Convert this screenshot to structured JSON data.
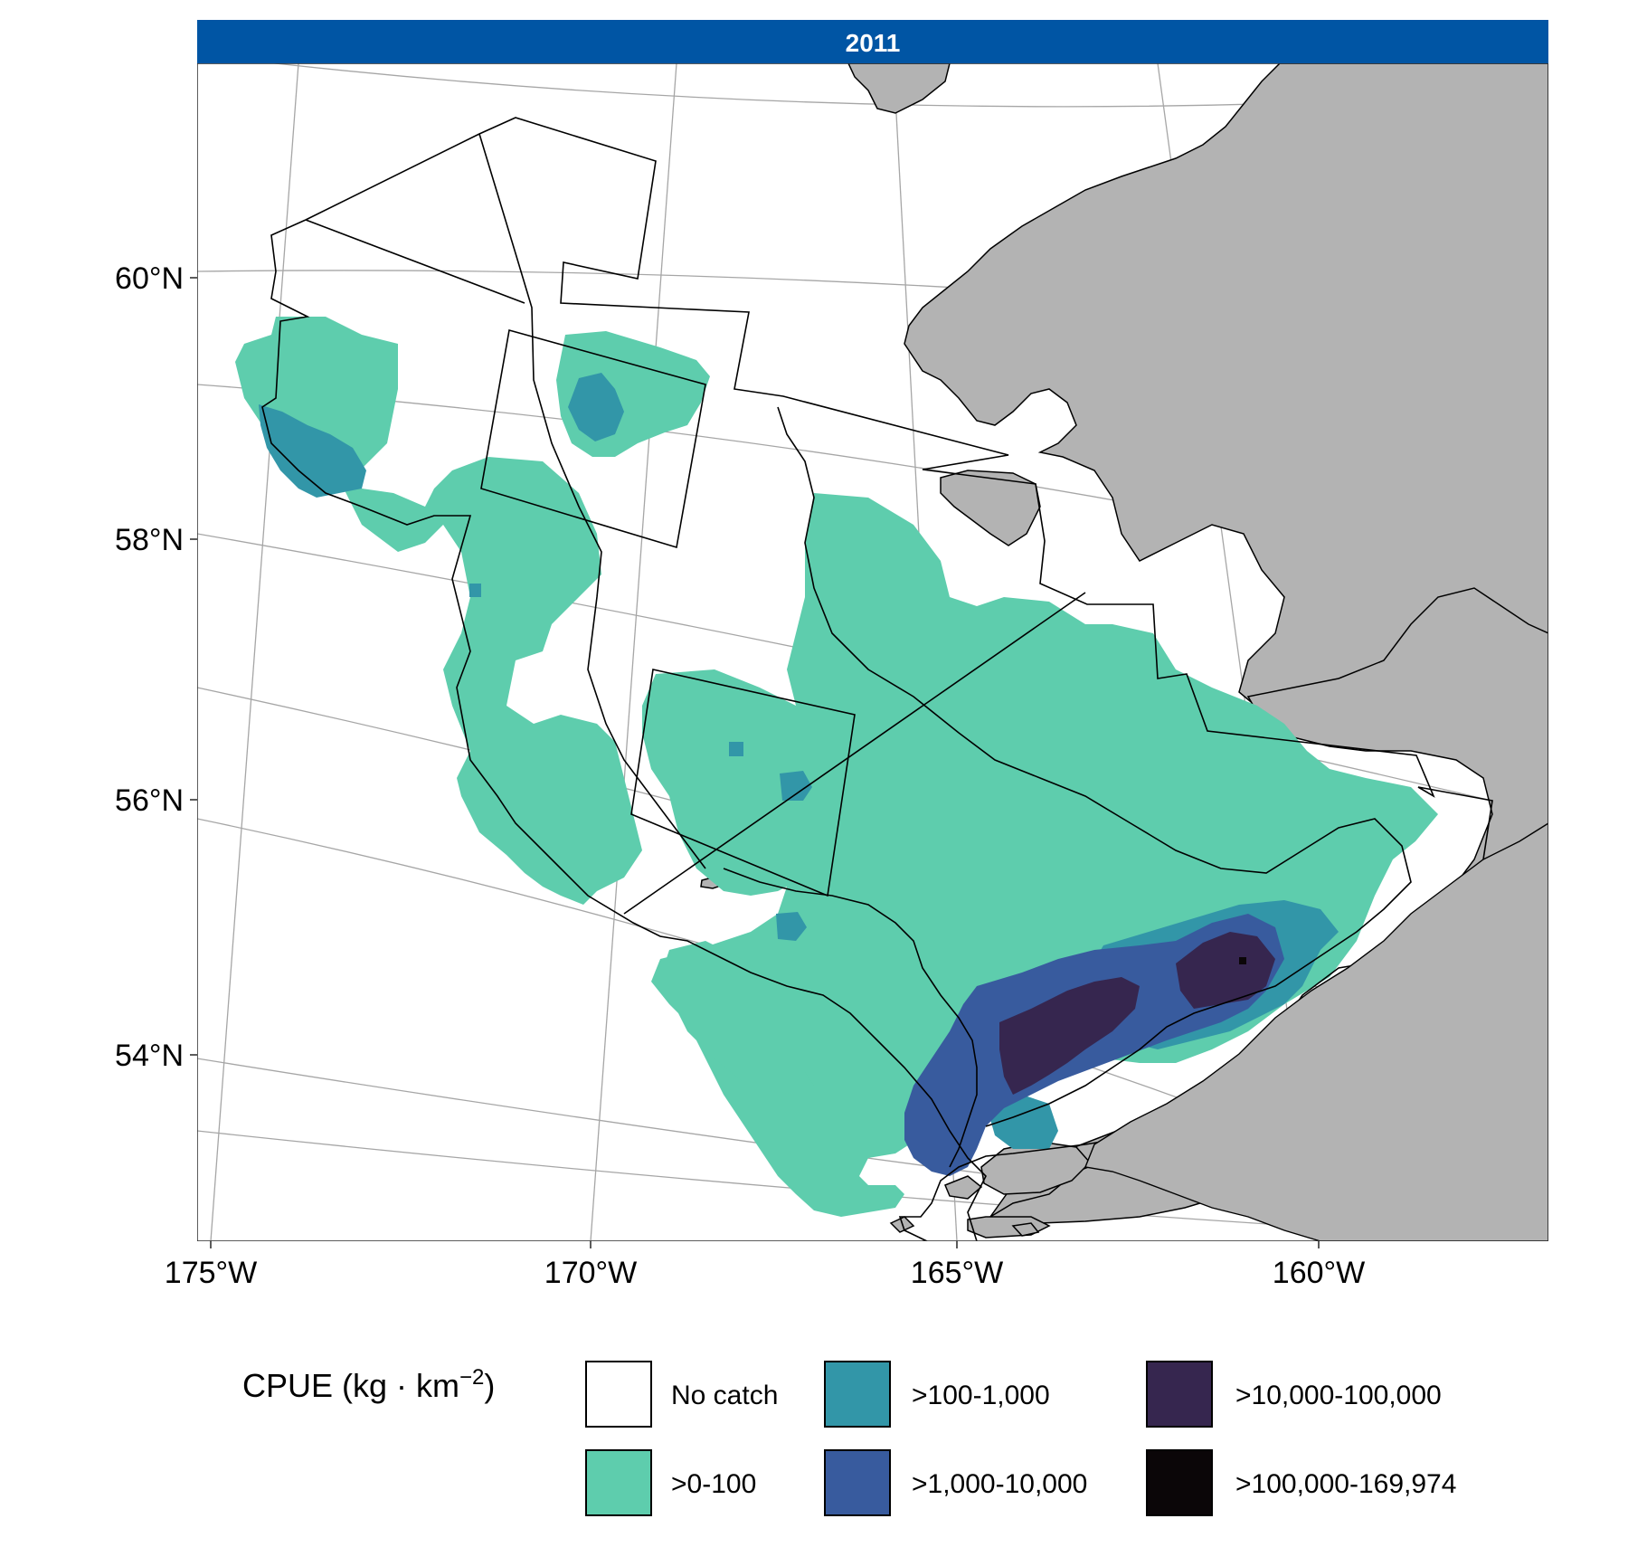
{
  "panel": {
    "strip_label": "2011",
    "strip_color": "#0055A4"
  },
  "axes": {
    "lat_ticks": [
      "60°N",
      "58°N",
      "56°N",
      "54°N"
    ],
    "lon_ticks": [
      "175°W",
      "170°W",
      "165°W",
      "160°W"
    ]
  },
  "legend": {
    "title_main": "CPUE (kg · km",
    "title_sup": "−2",
    "title_close": ")",
    "items": [
      {
        "label": "No catch",
        "color": "#FFFFFF"
      },
      {
        "label": ">0-100",
        "color": "#5ECDAD"
      },
      {
        "label": ">100-1,000",
        "color": "#3296A8"
      },
      {
        "label": ">1,000-10,000",
        "color": "#385B9E"
      },
      {
        "label": ">10,000-100,000",
        "color": "#36264F"
      },
      {
        "label": ">100,000-169,974",
        "color": "#0B0608"
      }
    ]
  },
  "colors": {
    "land": "#B3B3B3",
    "graticule": "#A6A6A6",
    "outline": "#000000"
  }
}
